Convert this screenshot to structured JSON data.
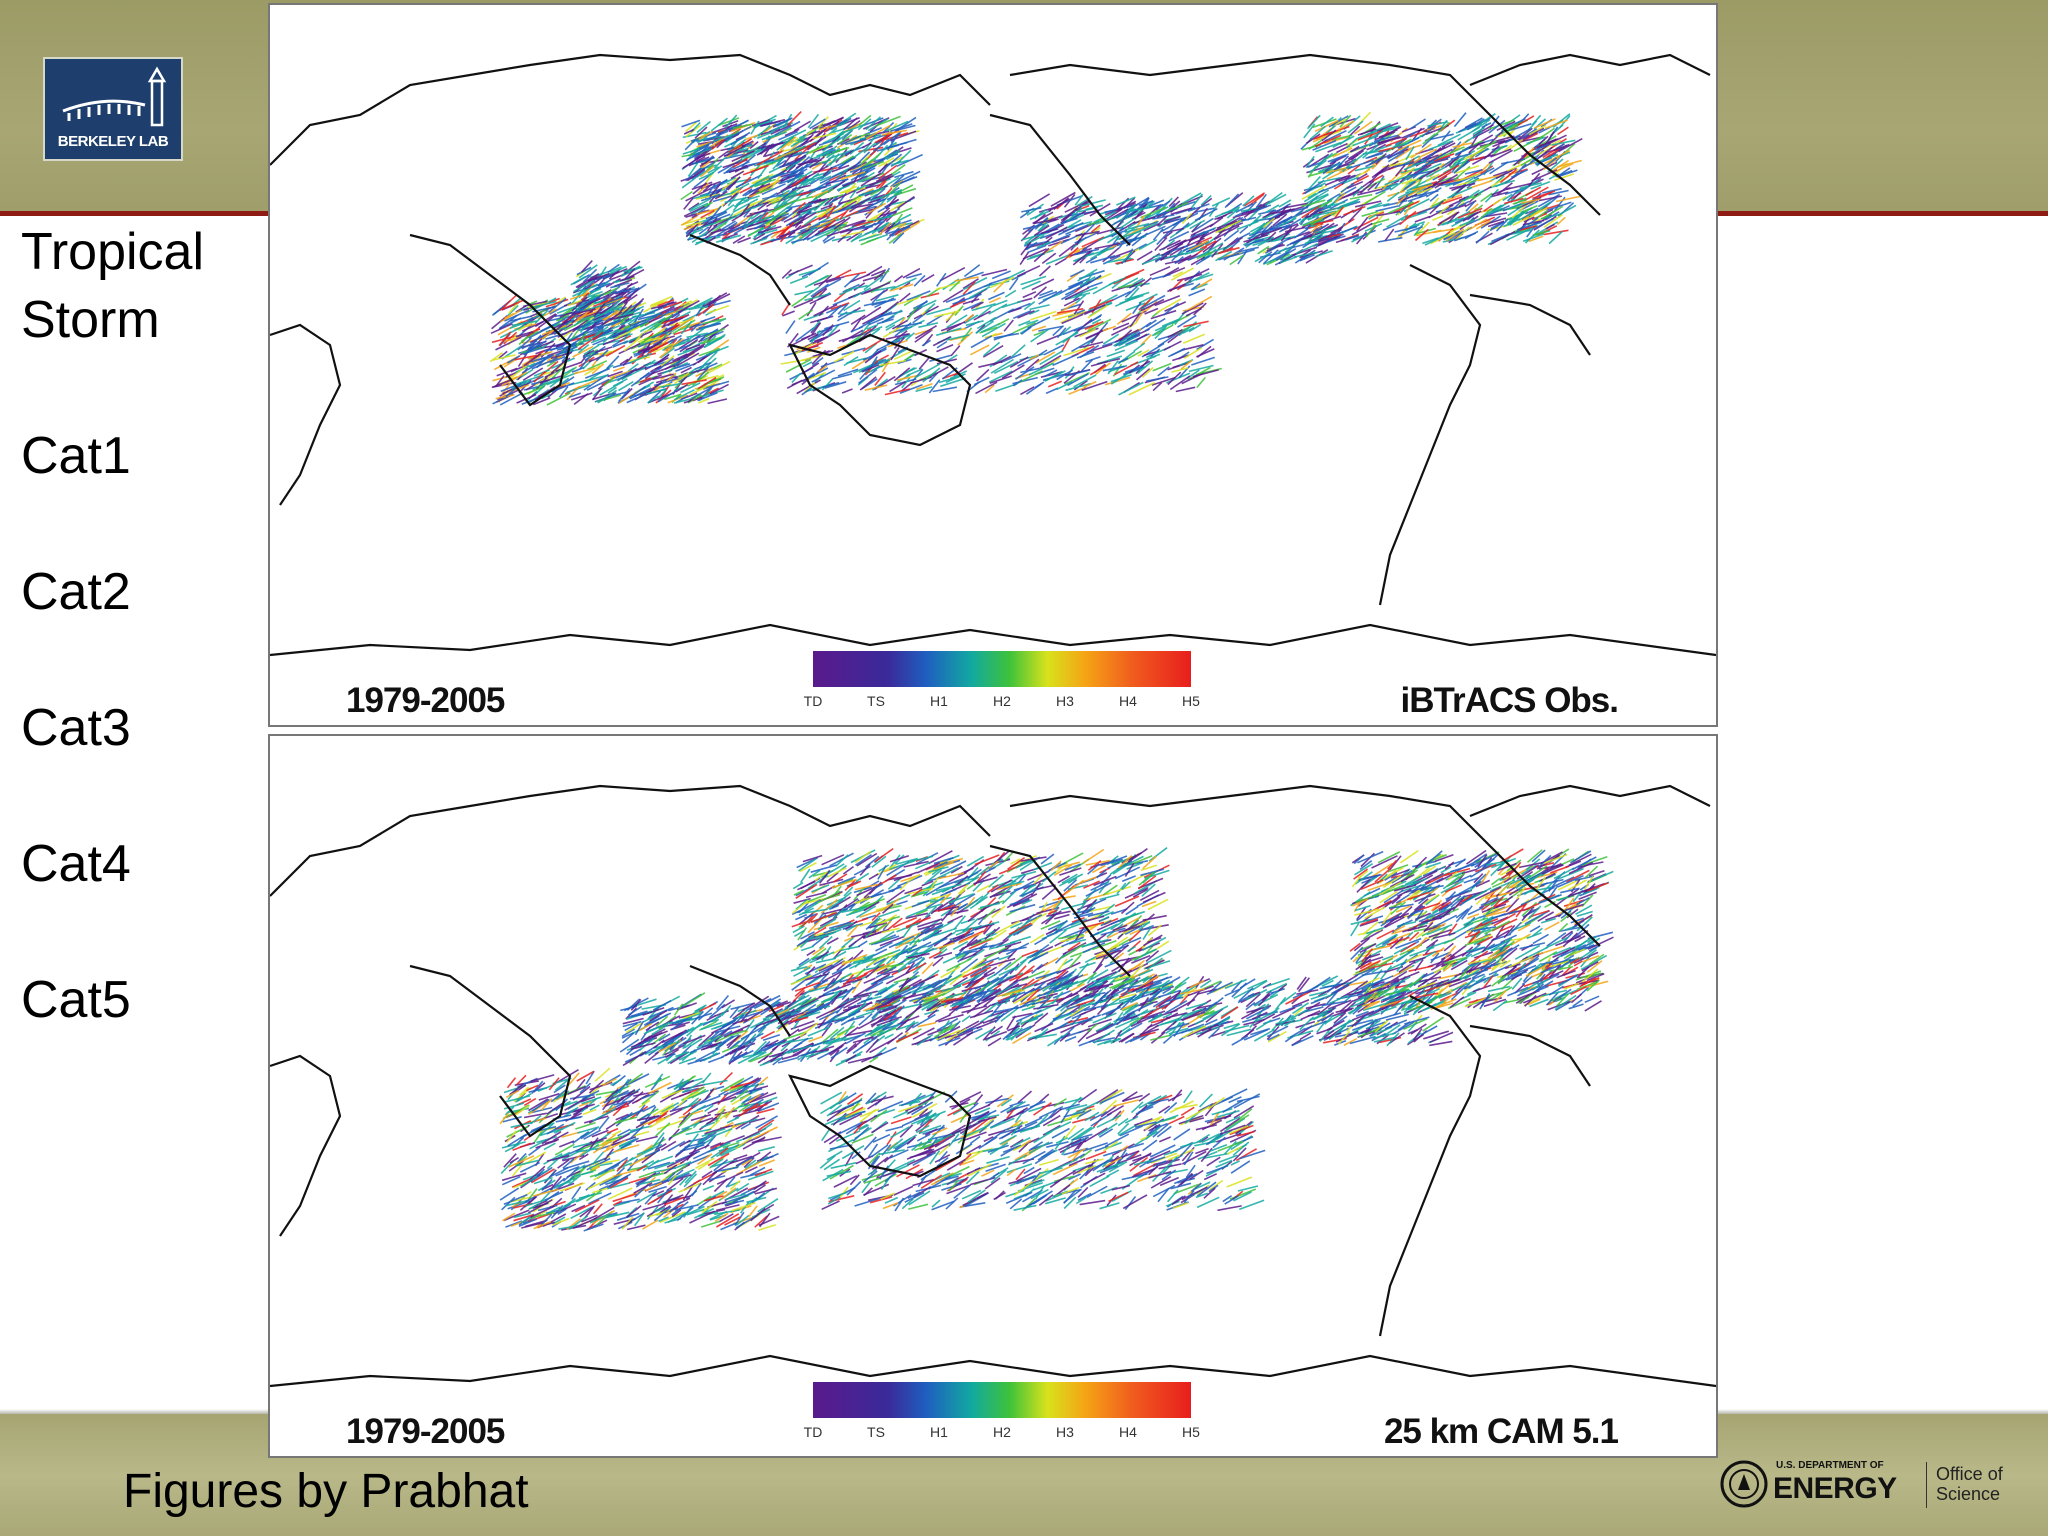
{
  "logo": {
    "text": "BERKELEY LAB"
  },
  "categories": [
    "Tropical",
    "Storm",
    "Cat1",
    "Cat2",
    "Cat3",
    "Cat4",
    "Cat5"
  ],
  "panels": [
    {
      "period": "1979-2005",
      "source": "iBTrACS Obs."
    },
    {
      "period": "1979-2005",
      "source": "25 km CAM 5.1"
    }
  ],
  "colorbar": {
    "ticks": [
      "TD",
      "TS",
      "H1",
      "H2",
      "H3",
      "H4",
      "H5"
    ],
    "colors": [
      "#5a1a8c",
      "#1f5fc0",
      "#12a9a0",
      "#3ec23a",
      "#d8e21c",
      "#f5a415",
      "#e81e1e"
    ]
  },
  "footer": {
    "credit": "Figures by Prabhat",
    "doe_department": "U.S. DEPARTMENT OF",
    "doe_energy": "ENERGY",
    "doe_office": "Office of Science"
  }
}
